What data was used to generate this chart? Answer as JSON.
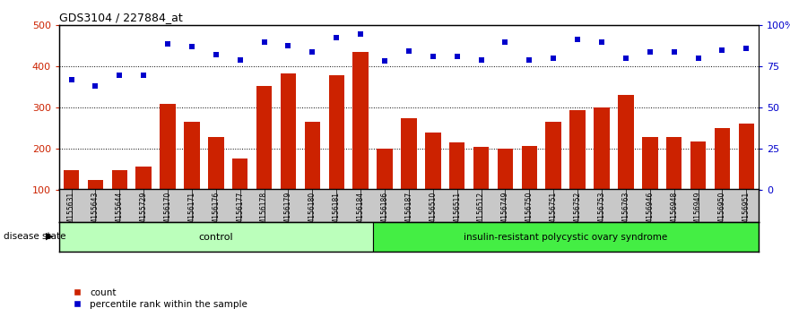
{
  "title": "GDS3104 / 227884_at",
  "samples": [
    "GSM155631",
    "GSM155643",
    "GSM155644",
    "GSM155729",
    "GSM156170",
    "GSM156171",
    "GSM156176",
    "GSM156177",
    "GSM156178",
    "GSM156179",
    "GSM156180",
    "GSM156181",
    "GSM156184",
    "GSM156186",
    "GSM156187",
    "GSM156510",
    "GSM156511",
    "GSM156512",
    "GSM156749",
    "GSM156750",
    "GSM156751",
    "GSM156752",
    "GSM156753",
    "GSM156763",
    "GSM156946",
    "GSM156948",
    "GSM156949",
    "GSM156950",
    "GSM156951"
  ],
  "counts": [
    148,
    125,
    148,
    158,
    310,
    265,
    228,
    178,
    352,
    383,
    265,
    380,
    435,
    200,
    275,
    240,
    215,
    205,
    200,
    208,
    265,
    295,
    300,
    332,
    230,
    230,
    218,
    250,
    262
  ],
  "percentile_ranks": [
    368,
    353,
    378,
    378,
    455,
    448,
    430,
    415,
    460,
    450,
    435,
    470,
    480,
    413,
    437,
    425,
    425,
    415,
    460,
    415,
    420,
    465,
    460,
    420,
    435,
    435,
    420,
    440,
    445
  ],
  "control_count": 13,
  "disease_count": 16,
  "bar_color": "#cc2200",
  "scatter_color": "#0000cc",
  "ylim_left": [
    100,
    500
  ],
  "ylim_right": [
    0,
    100
  ],
  "yticks_left": [
    100,
    200,
    300,
    400,
    500
  ],
  "ytick_labels_left": [
    "100",
    "200",
    "300",
    "400",
    "500"
  ],
  "yticks_right": [
    0,
    25,
    50,
    75,
    100
  ],
  "ytick_labels_right": [
    "0",
    "25",
    "50",
    "75",
    "100%"
  ],
  "control_label": "control",
  "disease_label": "insulin-resistant polycystic ovary syndrome",
  "disease_state_label": "disease state",
  "legend_count_label": "count",
  "legend_pct_label": "percentile rank within the sample",
  "control_color": "#bbffbb",
  "disease_color": "#44ee44",
  "bg_color": "#ffffff",
  "tick_bg_color": "#c8c8c8"
}
